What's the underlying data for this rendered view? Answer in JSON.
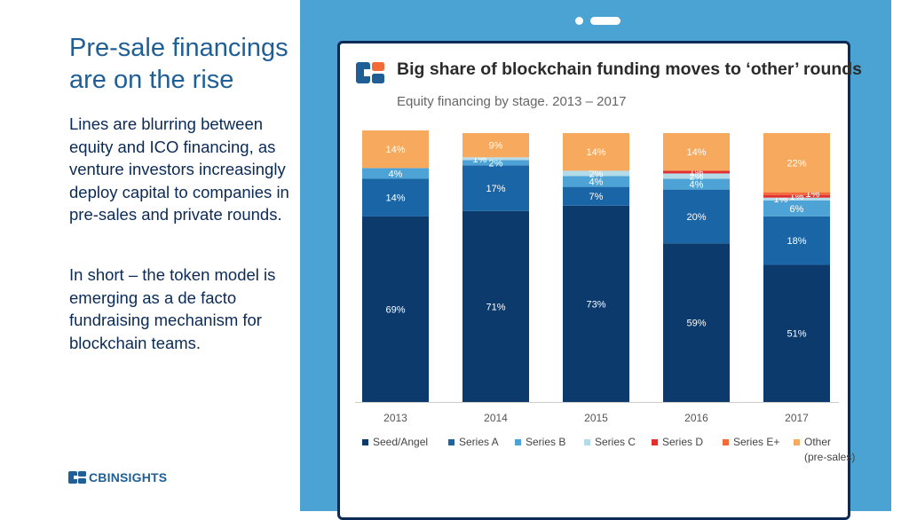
{
  "slide": {
    "title": "Pre-sale financings are on the rise",
    "paragraph1": "Lines are blurring between equity and ICO financing, as venture investors increasingly deploy capital to companies in pre-sales and private rounds.",
    "paragraph2": "In short – the token model is emerging as a de facto fundraising mechanism for blockchain teams.",
    "logo_text": "CBINSIGHTS"
  },
  "colors": {
    "slide_title": "#1f5f96",
    "body_text": "#0b2a55",
    "panel_bg": "#4aa3d2",
    "device_frame": "#0b2a55"
  },
  "chart_data": {
    "type": "bar",
    "stacked": true,
    "title": "Big share of blockchain funding moves to ‘other’ rounds",
    "subtitle": "Equity financing by stage. 2013 – 2017",
    "categories": [
      "2013",
      "2014",
      "2015",
      "2016",
      "2017"
    ],
    "ylim": [
      0,
      100
    ],
    "grid": false,
    "legend_position": "bottom",
    "series": [
      {
        "name": "Seed/Angel",
        "color": "#0c3a6d",
        "values": [
          69,
          71,
          73,
          59,
          51
        ],
        "labels": [
          "69%",
          "71%",
          "73%",
          "59%",
          "51%"
        ]
      },
      {
        "name": "Series A",
        "color": "#1a65a6",
        "values": [
          14,
          17,
          7,
          20,
          18
        ],
        "labels": [
          "14%",
          "17%",
          "7%",
          "20%",
          "18%"
        ]
      },
      {
        "name": "Series B",
        "color": "#4ea3d6",
        "values": [
          4,
          2,
          4,
          4,
          6
        ],
        "labels": [
          "4%",
          "2%",
          "4%",
          "4%",
          "6%"
        ]
      },
      {
        "name": "Series C",
        "color": "#b3dbea",
        "values": [
          0,
          1,
          2,
          2,
          1
        ],
        "labels": [
          "",
          "1%",
          "2%",
          "2%",
          "1%"
        ]
      },
      {
        "name": "Series D",
        "color": "#e03030",
        "values": [
          0,
          0,
          0,
          1,
          1
        ],
        "labels": [
          "",
          "",
          "",
          "1%",
          "1%"
        ]
      },
      {
        "name": "Series E+",
        "color": "#f26b38",
        "values": [
          0,
          0,
          0,
          0,
          1
        ],
        "labels": [
          "",
          "",
          "",
          "",
          "1%"
        ]
      },
      {
        "name": "Other\n(pre-sales)",
        "color": "#f7a95e",
        "values": [
          14,
          9,
          14,
          14,
          22
        ],
        "labels": [
          "14%",
          "9%",
          "14%",
          "14%",
          "22%"
        ]
      }
    ]
  }
}
